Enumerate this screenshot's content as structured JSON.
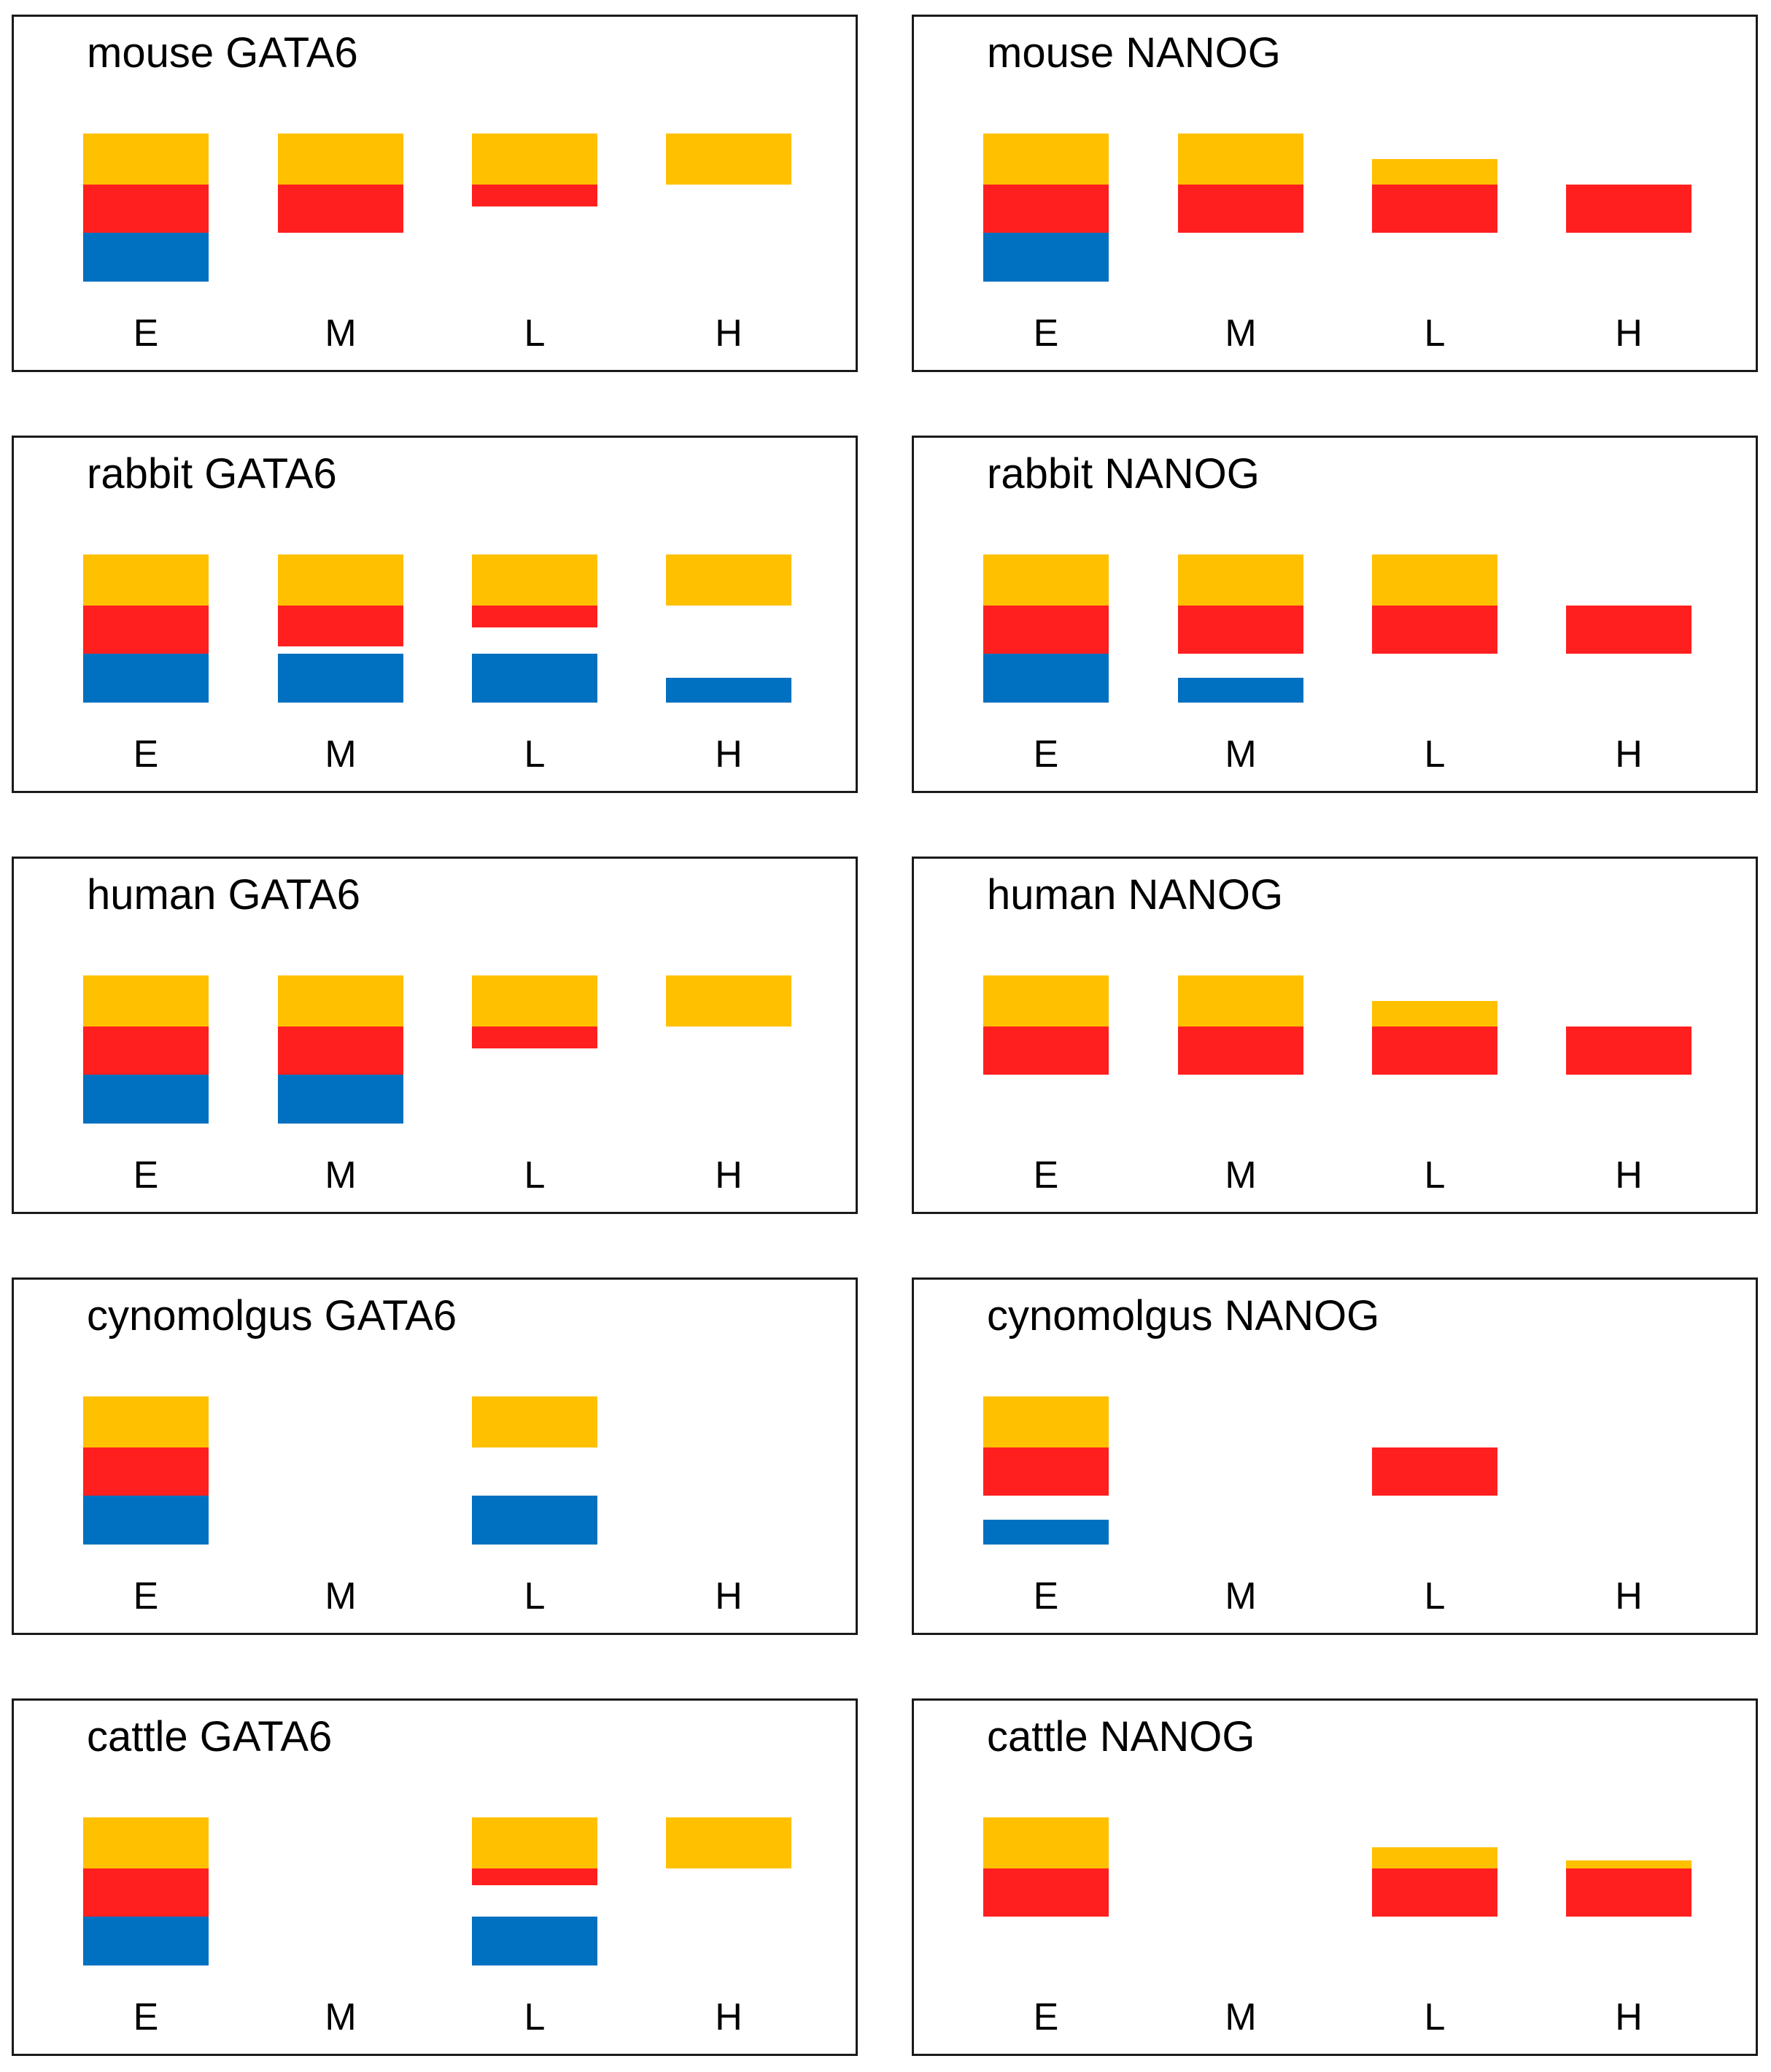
{
  "colors": {
    "yellow": "#FFC000",
    "red": "#FF1F1F",
    "blue": "#0070C0"
  },
  "categories": [
    "E",
    "M",
    "L",
    "H"
  ],
  "chart_data": [
    {
      "type": "bar",
      "title": "mouse GATA6",
      "categories": [
        "E",
        "M",
        "L",
        "H"
      ],
      "bars": [
        [
          [
            "yellow",
            1
          ],
          [
            "red",
            1
          ],
          [
            "blue",
            1
          ]
        ],
        [
          [
            "yellow",
            1
          ],
          [
            "red",
            1
          ]
        ],
        [
          [
            "yellow",
            1
          ],
          [
            "red",
            0.45
          ]
        ],
        [
          [
            "yellow",
            1
          ]
        ]
      ]
    },
    {
      "type": "bar",
      "title": "mouse NANOG",
      "categories": [
        "E",
        "M",
        "L",
        "H"
      ],
      "bars": [
        [
          [
            "yellow",
            1
          ],
          [
            "red",
            1
          ],
          [
            "blue",
            1
          ]
        ],
        [
          [
            "yellow",
            1
          ],
          [
            "red",
            1
          ]
        ],
        [
          [
            "yellow",
            0.5
          ],
          [
            "red",
            1
          ]
        ],
        [
          [
            "red",
            1
          ]
        ]
      ]
    },
    {
      "type": "bar",
      "title": "rabbit GATA6",
      "categories": [
        "E",
        "M",
        "L",
        "H"
      ],
      "bars": [
        [
          [
            "yellow",
            1
          ],
          [
            "red",
            1
          ],
          [
            "blue",
            1
          ]
        ],
        [
          [
            "yellow",
            1
          ],
          [
            "red",
            0.85
          ],
          [
            "blue",
            1
          ]
        ],
        [
          [
            "yellow",
            1
          ],
          [
            "red",
            0.45
          ],
          [
            "blue",
            1
          ]
        ],
        [
          [
            "yellow",
            1
          ],
          [
            "blue",
            0.5
          ]
        ]
      ]
    },
    {
      "type": "bar",
      "title": "rabbit NANOG",
      "categories": [
        "E",
        "M",
        "L",
        "H"
      ],
      "bars": [
        [
          [
            "yellow",
            1
          ],
          [
            "red",
            1
          ],
          [
            "blue",
            1
          ]
        ],
        [
          [
            "yellow",
            1
          ],
          [
            "red",
            1
          ],
          [
            "blue",
            0.5
          ]
        ],
        [
          [
            "yellow",
            1
          ],
          [
            "red",
            1
          ]
        ],
        [
          [
            "red",
            1
          ]
        ]
      ]
    },
    {
      "type": "bar",
      "title": "human GATA6",
      "categories": [
        "E",
        "M",
        "L",
        "H"
      ],
      "bars": [
        [
          [
            "yellow",
            1
          ],
          [
            "red",
            1
          ],
          [
            "blue",
            1
          ]
        ],
        [
          [
            "yellow",
            1
          ],
          [
            "red",
            1
          ],
          [
            "blue",
            1
          ]
        ],
        [
          [
            "yellow",
            1
          ],
          [
            "red",
            0.45
          ]
        ],
        [
          [
            "yellow",
            1
          ]
        ]
      ]
    },
    {
      "type": "bar",
      "title": "human NANOG",
      "categories": [
        "E",
        "M",
        "L",
        "H"
      ],
      "bars": [
        [
          [
            "yellow",
            1
          ],
          [
            "red",
            1
          ]
        ],
        [
          [
            "yellow",
            1
          ],
          [
            "red",
            1
          ]
        ],
        [
          [
            "yellow",
            0.5
          ],
          [
            "red",
            1
          ]
        ],
        [
          [
            "red",
            1
          ]
        ]
      ]
    },
    {
      "type": "bar",
      "title": "cynomolgus GATA6",
      "categories": [
        "E",
        "M",
        "L",
        "H"
      ],
      "bars": [
        [
          [
            "yellow",
            1
          ],
          [
            "red",
            1
          ],
          [
            "blue",
            1
          ]
        ],
        [],
        [
          [
            "yellow",
            1
          ],
          [
            "blue",
            1
          ]
        ],
        []
      ]
    },
    {
      "type": "bar",
      "title": "cynomolgus NANOG",
      "categories": [
        "E",
        "M",
        "L",
        "H"
      ],
      "bars": [
        [
          [
            "yellow",
            1
          ],
          [
            "red",
            1
          ],
          [
            "blue",
            0.5
          ]
        ],
        [],
        [
          [
            "red",
            1
          ]
        ],
        []
      ]
    },
    {
      "type": "bar",
      "title": "cattle GATA6",
      "categories": [
        "E",
        "M",
        "L",
        "H"
      ],
      "bars": [
        [
          [
            "yellow",
            1
          ],
          [
            "red",
            1
          ],
          [
            "blue",
            1
          ]
        ],
        [],
        [
          [
            "yellow",
            1
          ],
          [
            "red",
            0.35
          ],
          [
            "blue",
            1
          ]
        ],
        [
          [
            "yellow",
            1
          ]
        ]
      ]
    },
    {
      "type": "bar",
      "title": "cattle NANOG",
      "categories": [
        "E",
        "M",
        "L",
        "H"
      ],
      "bars": [
        [
          [
            "yellow",
            1
          ],
          [
            "red",
            1
          ]
        ],
        [],
        [
          [
            "yellow",
            0.42
          ],
          [
            "red",
            1
          ]
        ],
        [
          [
            "yellow",
            0.15
          ],
          [
            "red",
            1
          ]
        ]
      ]
    }
  ]
}
